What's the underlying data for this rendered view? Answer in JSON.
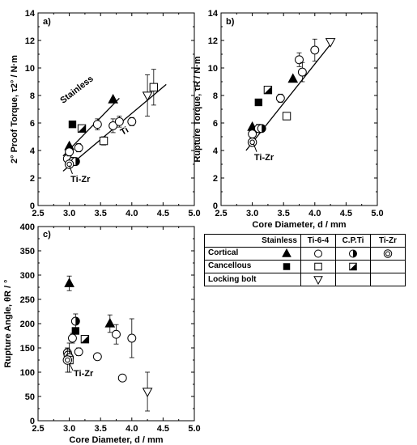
{
  "chart_data": [
    {
      "panel": "a)",
      "type": "scatter",
      "xlabel": "",
      "ylabel": "2° Proof Torque, τ2° / N·m",
      "xlim": [
        2.5,
        5.0
      ],
      "ylim": [
        0,
        14
      ],
      "xticks": [
        "2.5",
        "3.0",
        "3.5",
        "4.0",
        "4.5",
        "5.0"
      ],
      "yticks": [
        "0",
        "2",
        "4",
        "6",
        "8",
        "10",
        "12",
        "14"
      ],
      "annotations": [
        "Stainless",
        "Ti",
        "Ti-Zr"
      ],
      "fit_lines": [
        {
          "name": "Stainless",
          "x": [
            2.9,
            3.8
          ],
          "y": [
            3.6,
            7.8
          ]
        },
        {
          "name": "Ti",
          "x": [
            2.9,
            4.55
          ],
          "y": [
            2.5,
            8.8
          ]
        }
      ],
      "series": [
        {
          "name": "Stainless cortical",
          "symbol": "tri-filled",
          "points": [
            [
              3.0,
              4.3
            ],
            [
              3.7,
              7.7
            ]
          ]
        },
        {
          "name": "Stainless cancellous",
          "symbol": "square-filled",
          "points": [
            [
              3.05,
              5.9
            ]
          ]
        },
        {
          "name": "Ti-6-4 cortical",
          "symbol": "circle-open",
          "points": [
            [
              2.97,
              3.4
            ],
            [
              3.0,
              3.9
            ],
            [
              3.05,
              3.2
            ],
            [
              3.15,
              4.2
            ],
            [
              3.45,
              5.9
            ],
            [
              3.7,
              5.8
            ],
            [
              3.8,
              6.1
            ],
            [
              4.0,
              6.1
            ]
          ],
          "errors": [
            0.3,
            0.3,
            0.3,
            0.3,
            0.4,
            0.5,
            0.4,
            0.3
          ]
        },
        {
          "name": "Ti-6-4 cancellous",
          "symbol": "square-open",
          "points": [
            [
              3.55,
              4.7
            ],
            [
              4.35,
              8.6
            ]
          ],
          "errors": [
            0.3,
            1.3
          ]
        },
        {
          "name": "Ti-6-4 locking bolt",
          "symbol": "tri-open-down",
          "points": [
            [
              4.25,
              8.0
            ]
          ],
          "errors": [
            1.5
          ]
        },
        {
          "name": "C.P.Ti cortical",
          "symbol": "circle-half",
          "points": [
            [
              3.1,
              3.2
            ]
          ]
        },
        {
          "name": "C.P.Ti cancellous",
          "symbol": "square-half",
          "points": [
            [
              3.2,
              5.6
            ]
          ]
        },
        {
          "name": "Ti-Zr cortical",
          "symbol": "circle-double",
          "points": [
            [
              3.0,
              3.0
            ]
          ]
        }
      ]
    },
    {
      "panel": "b)",
      "type": "scatter",
      "xlabel": "Core Diameter, d / mm",
      "ylabel": "Rupture Torque, τR / N·m",
      "xlim": [
        2.5,
        5.0
      ],
      "ylim": [
        0,
        14
      ],
      "xticks": [
        "2.5",
        "3.0",
        "3.5",
        "4.0",
        "4.5",
        "5.0"
      ],
      "yticks": [
        "0",
        "2",
        "4",
        "6",
        "8",
        "10",
        "12",
        "14"
      ],
      "annotations": [
        "Ti-Zr"
      ],
      "fit_lines": [
        {
          "name": "fit",
          "x": [
            2.9,
            4.3
          ],
          "y": [
            4.0,
            12.0
          ]
        }
      ],
      "series": [
        {
          "name": "Stainless cortical",
          "symbol": "tri-filled",
          "points": [
            [
              3.0,
              5.7
            ],
            [
              3.65,
              9.2
            ]
          ]
        },
        {
          "name": "Stainless cancellous",
          "symbol": "square-filled",
          "points": [
            [
              3.1,
              7.5
            ]
          ]
        },
        {
          "name": "Ti-6-4 cortical",
          "symbol": "circle-open",
          "points": [
            [
              3.0,
              5.2
            ],
            [
              3.1,
              5.6
            ],
            [
              3.45,
              7.8
            ],
            [
              3.75,
              10.6
            ],
            [
              3.8,
              9.7
            ],
            [
              4.0,
              11.3
            ]
          ],
          "errors": [
            0.3,
            0.3,
            0.3,
            0.5,
            0.7,
            0.8
          ]
        },
        {
          "name": "Ti-6-4 cancellous",
          "symbol": "square-open",
          "points": [
            [
              3.55,
              6.5
            ]
          ]
        },
        {
          "name": "Ti-6-4 locking bolt",
          "symbol": "tri-open-down",
          "points": [
            [
              4.25,
              11.9
            ]
          ]
        },
        {
          "name": "C.P.Ti cortical",
          "symbol": "circle-half",
          "points": [
            [
              3.15,
              5.6
            ]
          ]
        },
        {
          "name": "C.P.Ti cancellous",
          "symbol": "square-half",
          "points": [
            [
              3.25,
              8.4
            ]
          ]
        },
        {
          "name": "Ti-Zr cortical",
          "symbol": "circle-double",
          "points": [
            [
              3.0,
              4.6
            ]
          ]
        }
      ]
    },
    {
      "panel": "c)",
      "type": "scatter",
      "xlabel": "Core Diameter, d / mm",
      "ylabel": "Rupture Angle, θR / °",
      "xlim": [
        2.5,
        5.0
      ],
      "ylim": [
        0,
        400
      ],
      "xticks": [
        "2.5",
        "3.0",
        "3.5",
        "4.0",
        "4.5",
        "5.0"
      ],
      "yticks": [
        "0",
        "50",
        "100",
        "150",
        "200",
        "250",
        "300",
        "350",
        "400"
      ],
      "annotations": [
        "Ti-Zr"
      ],
      "fit_lines": [],
      "series": [
        {
          "name": "Stainless cortical",
          "symbol": "tri-filled",
          "points": [
            [
              3.0,
              283
            ],
            [
              3.65,
              200
            ]
          ],
          "errors": [
            15,
            18
          ]
        },
        {
          "name": "Stainless cancellous",
          "symbol": "square-filled",
          "points": [
            [
              3.1,
              185
            ]
          ]
        },
        {
          "name": "Ti-6-4 cortical",
          "symbol": "circle-open",
          "points": [
            [
              2.97,
              140
            ],
            [
              2.98,
              135
            ],
            [
              3.0,
              130
            ],
            [
              3.05,
              170
            ],
            [
              3.15,
              142
            ],
            [
              3.45,
              132
            ],
            [
              3.75,
              178
            ],
            [
              3.85,
              88
            ],
            [
              4.0,
              170
            ]
          ],
          "errors": [
            8,
            8,
            30,
            10,
            8,
            6,
            20,
            5,
            40
          ]
        },
        {
          "name": "Ti-6-4 cancellous",
          "symbol": "square-open",
          "points": [
            [
              3.0,
              125
            ]
          ]
        },
        {
          "name": "Ti-6-4 locking bolt",
          "symbol": "tri-open-down",
          "points": [
            [
              4.25,
              60
            ]
          ],
          "errors": [
            40
          ]
        },
        {
          "name": "C.P.Ti cortical",
          "symbol": "circle-half",
          "points": [
            [
              3.1,
              205
            ]
          ],
          "errors": [
            15
          ]
        },
        {
          "name": "C.P.Ti cancellous",
          "symbol": "square-half",
          "points": [
            [
              3.25,
              168
            ]
          ]
        },
        {
          "name": "Ti-Zr cortical",
          "symbol": "circle-double",
          "points": [
            [
              2.97,
              125
            ]
          ],
          "errors": [
            25
          ]
        }
      ]
    }
  ],
  "legend": {
    "columns": [
      "Stainless",
      "Ti-6-4",
      "C.P.Ti",
      "Ti-Zr"
    ],
    "rows": [
      {
        "label": "Cortical",
        "symbols": [
          "tri-filled",
          "circle-open",
          "circle-half",
          "circle-double"
        ]
      },
      {
        "label": "Cancellous",
        "symbols": [
          "square-filled",
          "square-open",
          "square-half",
          ""
        ]
      },
      {
        "label": "Locking bolt",
        "symbols": [
          "",
          "tri-open-down",
          "",
          ""
        ]
      }
    ]
  }
}
